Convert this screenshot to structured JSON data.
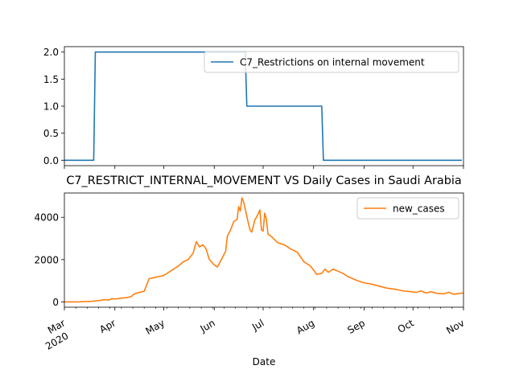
{
  "chart_data": [
    {
      "type": "line",
      "title": "",
      "xlabel": "",
      "ylabel": "",
      "ylim": [
        -0.1,
        2.1
      ],
      "yticks": [
        "0.0",
        "0.5",
        "1.0",
        "1.5",
        "2.0"
      ],
      "legend_position": "top-right",
      "grid": false,
      "series": [
        {
          "name": "C7_Restrictions on internal movement",
          "color": "#1f77b4",
          "points": [
            [
              "2020-03-01",
              0
            ],
            [
              "2020-03-19",
              0
            ],
            [
              "2020-03-20",
              2
            ],
            [
              "2020-06-20",
              2
            ],
            [
              "2020-06-21",
              1
            ],
            [
              "2020-08-06",
              1
            ],
            [
              "2020-08-07",
              0
            ],
            [
              "2020-10-31",
              0
            ]
          ]
        }
      ]
    },
    {
      "type": "line",
      "title": "C7_RESTRICT_INTERNAL_MOVEMENT VS Daily Cases in Saudi Arabia",
      "xlabel": "Date",
      "ylabel": "",
      "ylim": [
        -250,
        5150
      ],
      "yticks": [
        "0",
        "2000",
        "4000"
      ],
      "xticks": [
        {
          "date": "2020-03-01",
          "label": "Mar",
          "sub": "2020"
        },
        {
          "date": "2020-04-01",
          "label": "Apr",
          "sub": ""
        },
        {
          "date": "2020-05-01",
          "label": "May",
          "sub": ""
        },
        {
          "date": "2020-06-01",
          "label": "Jun",
          "sub": ""
        },
        {
          "date": "2020-07-01",
          "label": "Jul",
          "sub": ""
        },
        {
          "date": "2020-08-01",
          "label": "Aug",
          "sub": ""
        },
        {
          "date": "2020-09-01",
          "label": "Sep",
          "sub": ""
        },
        {
          "date": "2020-10-01",
          "label": "Oct",
          "sub": ""
        },
        {
          "date": "2020-11-01",
          "label": "Nov",
          "sub": ""
        }
      ],
      "legend_position": "top-right",
      "grid": false,
      "series": [
        {
          "name": "new_cases",
          "color": "#ff7f0e",
          "points": [
            [
              "2020-03-01",
              0
            ],
            [
              "2020-03-10",
              5
            ],
            [
              "2020-03-18",
              30
            ],
            [
              "2020-03-22",
              60
            ],
            [
              "2020-03-26",
              110
            ],
            [
              "2020-03-28",
              80
            ],
            [
              "2020-03-30",
              150
            ],
            [
              "2020-04-02",
              140
            ],
            [
              "2020-04-05",
              180
            ],
            [
              "2020-04-08",
              200
            ],
            [
              "2020-04-11",
              250
            ],
            [
              "2020-04-13",
              380
            ],
            [
              "2020-04-16",
              450
            ],
            [
              "2020-04-19",
              500
            ],
            [
              "2020-04-22",
              1100
            ],
            [
              "2020-04-25",
              1150
            ],
            [
              "2020-04-28",
              1200
            ],
            [
              "2020-05-01",
              1250
            ],
            [
              "2020-05-04",
              1400
            ],
            [
              "2020-05-07",
              1550
            ],
            [
              "2020-05-10",
              1700
            ],
            [
              "2020-05-13",
              1900
            ],
            [
              "2020-05-16",
              2000
            ],
            [
              "2020-05-19",
              2300
            ],
            [
              "2020-05-21",
              2850
            ],
            [
              "2020-05-23",
              2600
            ],
            [
              "2020-05-25",
              2700
            ],
            [
              "2020-05-27",
              2500
            ],
            [
              "2020-05-29",
              2000
            ],
            [
              "2020-06-01",
              1750
            ],
            [
              "2020-06-03",
              1650
            ],
            [
              "2020-06-06",
              2100
            ],
            [
              "2020-06-08",
              2400
            ],
            [
              "2020-06-09",
              3100
            ],
            [
              "2020-06-11",
              3400
            ],
            [
              "2020-06-13",
              3800
            ],
            [
              "2020-06-15",
              3900
            ],
            [
              "2020-06-16",
              4500
            ],
            [
              "2020-06-17",
              4300
            ],
            [
              "2020-06-18",
              4920
            ],
            [
              "2020-06-19",
              4750
            ],
            [
              "2020-06-20",
              4400
            ],
            [
              "2020-06-22",
              3700
            ],
            [
              "2020-06-23",
              3400
            ],
            [
              "2020-06-24",
              3300
            ],
            [
              "2020-06-26",
              3900
            ],
            [
              "2020-06-27",
              4000
            ],
            [
              "2020-06-29",
              4350
            ],
            [
              "2020-06-30",
              3400
            ],
            [
              "2020-07-01",
              3350
            ],
            [
              "2020-07-02",
              4200
            ],
            [
              "2020-07-03",
              3900
            ],
            [
              "2020-07-04",
              3200
            ],
            [
              "2020-07-06",
              3100
            ],
            [
              "2020-07-10",
              2800
            ],
            [
              "2020-07-14",
              2700
            ],
            [
              "2020-07-18",
              2500
            ],
            [
              "2020-07-22",
              2350
            ],
            [
              "2020-07-26",
              1900
            ],
            [
              "2020-07-30",
              1700
            ],
            [
              "2020-08-01",
              1500
            ],
            [
              "2020-08-03",
              1300
            ],
            [
              "2020-08-06",
              1350
            ],
            [
              "2020-08-08",
              1550
            ],
            [
              "2020-08-10",
              1400
            ],
            [
              "2020-08-13",
              1550
            ],
            [
              "2020-08-16",
              1450
            ],
            [
              "2020-08-19",
              1350
            ],
            [
              "2020-08-22",
              1200
            ],
            [
              "2020-08-25",
              1100
            ],
            [
              "2020-08-28",
              1000
            ],
            [
              "2020-09-01",
              900
            ],
            [
              "2020-09-05",
              850
            ],
            [
              "2020-09-10",
              750
            ],
            [
              "2020-09-15",
              650
            ],
            [
              "2020-09-20",
              600
            ],
            [
              "2020-09-25",
              520
            ],
            [
              "2020-09-30",
              480
            ],
            [
              "2020-10-03",
              450
            ],
            [
              "2020-10-06",
              520
            ],
            [
              "2020-10-09",
              420
            ],
            [
              "2020-10-12",
              480
            ],
            [
              "2020-10-16",
              400
            ],
            [
              "2020-10-20",
              380
            ],
            [
              "2020-10-23",
              460
            ],
            [
              "2020-10-26",
              360
            ],
            [
              "2020-10-29",
              400
            ],
            [
              "2020-11-01",
              420
            ]
          ]
        }
      ]
    }
  ]
}
